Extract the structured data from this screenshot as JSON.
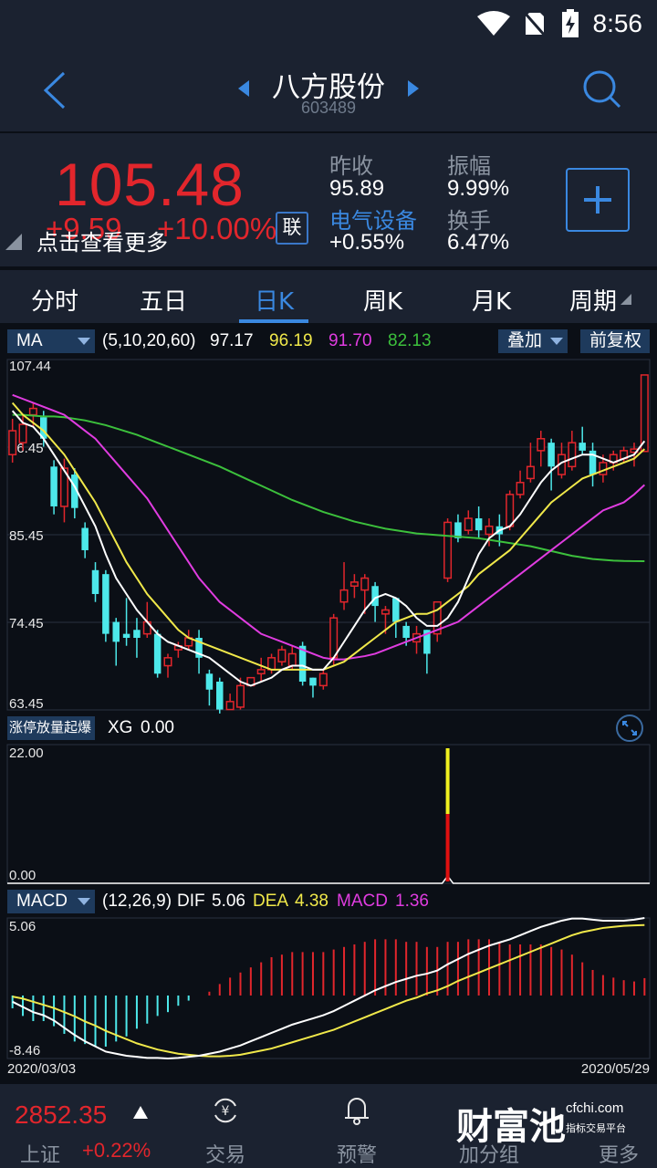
{
  "status": {
    "time": "8:56"
  },
  "header": {
    "stock_name": "八方股份",
    "stock_code": "603489"
  },
  "quote": {
    "price": "105.48",
    "change": "+9.59",
    "change_pct": "+10.00%",
    "hint": "点击查看更多",
    "lian_label": "联",
    "prev_close_label": "昨收",
    "prev_close": "95.89",
    "amplitude_label": "振幅",
    "amplitude": "9.99%",
    "sector": "电气设备",
    "sector_change": "+0.55%",
    "turnover_label": "换手",
    "turnover": "6.47%"
  },
  "tabs": [
    "分时",
    "五日",
    "日K",
    "周K",
    "月K",
    "周期"
  ],
  "active_tab": "日K",
  "ma_bar": {
    "selector": "MA",
    "params": "(5,10,20,60)",
    "v5": "97.17",
    "v10": "96.19",
    "v20": "91.70",
    "v60": "82.13",
    "overlay_btn": "叠加",
    "adjust_btn": "前复权",
    "colors": {
      "ma5": "#ffffff",
      "ma10": "#f0e84a",
      "ma20": "#e03ce0",
      "ma60": "#3cc03c"
    }
  },
  "xg_bar": {
    "selector": "涨停放量起爆",
    "label": "XG",
    "value": "0.00"
  },
  "macd_bar": {
    "selector": "MACD",
    "params": "(12,26,9)",
    "dif_label": "DIF",
    "dif": "5.06",
    "dea_label": "DEA",
    "dea": "4.38",
    "macd_label": "MACD",
    "macd": "1.36"
  },
  "chart_data": {
    "type": "candlestick",
    "price_axis": [
      "107.44",
      "96.45",
      "85.45",
      "74.45",
      "63.45"
    ],
    "price_range": [
      63.45,
      107.44
    ],
    "xg_axis": [
      "22.00",
      "0.00"
    ],
    "macd_axis": [
      "5.06",
      "-8.46"
    ],
    "date_start": "2020/03/03",
    "date_end": "2020/05/29",
    "candles": [
      {
        "o": 95.5,
        "c": 98.5,
        "h": 100.0,
        "l": 94.5
      },
      {
        "o": 97.0,
        "c": 99.3,
        "h": 100.5,
        "l": 96.0
      },
      {
        "o": 100.5,
        "c": 101.3,
        "h": 102.0,
        "l": 99.0
      },
      {
        "o": 100.2,
        "c": 97.5,
        "h": 101.0,
        "l": 96.5
      },
      {
        "o": 94.0,
        "c": 89.0,
        "h": 94.8,
        "l": 88.0
      },
      {
        "o": 89.0,
        "c": 93.8,
        "h": 95.0,
        "l": 87.0
      },
      {
        "o": 93.0,
        "c": 88.8,
        "h": 93.8,
        "l": 87.5
      },
      {
        "o": 86.3,
        "c": 83.5,
        "h": 87.0,
        "l": 82.5
      },
      {
        "o": 81.0,
        "c": 78.0,
        "h": 82.0,
        "l": 77.0
      },
      {
        "o": 80.5,
        "c": 73.0,
        "h": 81.0,
        "l": 72.0
      },
      {
        "o": 74.5,
        "c": 72.0,
        "h": 75.0,
        "l": 69.0
      },
      {
        "o": 73.0,
        "c": 72.5,
        "h": 77.5,
        "l": 71.5
      },
      {
        "o": 73.5,
        "c": 72.5,
        "h": 75.0,
        "l": 70.0
      },
      {
        "o": 73.0,
        "c": 74.5,
        "h": 77.0,
        "l": 72.5
      },
      {
        "o": 73.0,
        "c": 68.0,
        "h": 73.5,
        "l": 67.5
      },
      {
        "o": 69.0,
        "c": 70.0,
        "h": 70.5,
        "l": 67.5
      },
      {
        "o": 71.0,
        "c": 71.5,
        "h": 72.0,
        "l": 70.0
      },
      {
        "o": 71.5,
        "c": 72.5,
        "h": 73.5,
        "l": 71.0
      },
      {
        "o": 72.5,
        "c": 70.0,
        "h": 73.5,
        "l": 68.0
      },
      {
        "o": 68.0,
        "c": 66.0,
        "h": 68.5,
        "l": 64.0
      },
      {
        "o": 67.0,
        "c": 63.5,
        "h": 67.5,
        "l": 63.0
      },
      {
        "o": 63.5,
        "c": 64.5,
        "h": 65.5,
        "l": 63.5
      },
      {
        "o": 63.8,
        "c": 66.5,
        "h": 67.5,
        "l": 63.5
      },
      {
        "o": 66.5,
        "c": 67.5,
        "h": 67.5,
        "l": 66.5
      },
      {
        "o": 68.0,
        "c": 68.5,
        "h": 70.0,
        "l": 67.0
      },
      {
        "o": 68.5,
        "c": 70.0,
        "h": 70.5,
        "l": 68.0
      },
      {
        "o": 69.5,
        "c": 71.0,
        "h": 71.5,
        "l": 69.0
      },
      {
        "o": 69.0,
        "c": 70.5,
        "h": 71.5,
        "l": 68.5
      },
      {
        "o": 71.5,
        "c": 67.0,
        "h": 72.0,
        "l": 66.5
      },
      {
        "o": 67.5,
        "c": 66.5,
        "h": 67.5,
        "l": 65.0
      },
      {
        "o": 66.5,
        "c": 68.0,
        "h": 68.5,
        "l": 66.0
      },
      {
        "o": 70.0,
        "c": 75.0,
        "h": 75.5,
        "l": 69.0
      },
      {
        "o": 77.0,
        "c": 78.5,
        "h": 82.0,
        "l": 76.0
      },
      {
        "o": 79.0,
        "c": 79.5,
        "h": 80.5,
        "l": 77.5
      },
      {
        "o": 78.5,
        "c": 80.0,
        "h": 80.5,
        "l": 75.5
      },
      {
        "o": 79.0,
        "c": 76.5,
        "h": 79.5,
        "l": 74.5
      },
      {
        "o": 75.5,
        "c": 76.0,
        "h": 76.5,
        "l": 73.0
      },
      {
        "o": 77.5,
        "c": 74.5,
        "h": 77.5,
        "l": 72.5
      },
      {
        "o": 74.0,
        "c": 72.5,
        "h": 74.5,
        "l": 71.5
      },
      {
        "o": 72.0,
        "c": 73.0,
        "h": 74.0,
        "l": 70.5
      },
      {
        "o": 73.5,
        "c": 70.5,
        "h": 73.5,
        "l": 68.0
      },
      {
        "o": 73.0,
        "c": 77.0,
        "h": 77.0,
        "l": 72.0
      },
      {
        "o": 80.0,
        "c": 87.0,
        "h": 87.5,
        "l": 79.5
      },
      {
        "o": 87.0,
        "c": 85.0,
        "h": 88.0,
        "l": 84.5
      },
      {
        "o": 86.0,
        "c": 87.5,
        "h": 88.5,
        "l": 85.5
      },
      {
        "o": 87.5,
        "c": 86.0,
        "h": 89.0,
        "l": 85.0
      },
      {
        "o": 85.5,
        "c": 86.5,
        "h": 87.5,
        "l": 84.0
      },
      {
        "o": 86.5,
        "c": 85.5,
        "h": 88.0,
        "l": 84.0
      },
      {
        "o": 86.5,
        "c": 90.5,
        "h": 91.0,
        "l": 86.0
      },
      {
        "o": 90.5,
        "c": 92.0,
        "h": 93.5,
        "l": 90.0
      },
      {
        "o": 92.5,
        "c": 94.0,
        "h": 97.0,
        "l": 92.0
      },
      {
        "o": 96.0,
        "c": 97.5,
        "h": 98.5,
        "l": 94.0
      },
      {
        "o": 97.0,
        "c": 94.0,
        "h": 97.5,
        "l": 91.0
      },
      {
        "o": 93.0,
        "c": 95.5,
        "h": 97.0,
        "l": 92.5
      },
      {
        "o": 94.0,
        "c": 97.0,
        "h": 98.5,
        "l": 93.5
      },
      {
        "o": 97.0,
        "c": 96.0,
        "h": 99.0,
        "l": 95.5
      },
      {
        "o": 96.0,
        "c": 93.0,
        "h": 97.0,
        "l": 91.5
      },
      {
        "o": 93.0,
        "c": 94.5,
        "h": 95.5,
        "l": 92.0
      },
      {
        "o": 94.5,
        "c": 95.5,
        "h": 96.0,
        "l": 93.5
      },
      {
        "o": 95.0,
        "c": 96.0,
        "h": 96.5,
        "l": 94.5
      },
      {
        "o": 95.8,
        "c": 96.2,
        "h": 97.0,
        "l": 94.0
      },
      {
        "o": 95.9,
        "c": 105.5,
        "h": 105.5,
        "l": 95.9
      }
    ],
    "ma5": [
      101,
      99.5,
      99,
      97.5,
      95.5,
      93.5,
      91.5,
      89,
      86.5,
      83,
      80,
      78,
      76,
      74.5,
      73,
      72,
      71.5,
      71,
      70.5,
      70,
      69,
      68,
      67,
      66.5,
      67,
      67.5,
      68.5,
      69,
      69,
      68.5,
      68.5,
      70,
      72,
      74,
      76,
      77.5,
      78,
      77.5,
      76.5,
      75,
      74,
      74,
      75,
      77,
      80,
      83,
      85,
      86,
      86.5,
      88,
      90,
      92,
      93.5,
      94.5,
      95,
      95.5,
      95.5,
      95,
      94.5,
      95,
      95.5,
      97.2
    ],
    "ma10": [
      102,
      100.5,
      99.5,
      98.5,
      97,
      95.5,
      93.5,
      91.5,
      89.5,
      87,
      84.5,
      82,
      80,
      78,
      76.5,
      75,
      73.5,
      72.5,
      72,
      71.5,
      71,
      70.5,
      70,
      69.5,
      69,
      68.5,
      68.5,
      68.5,
      68.5,
      68.5,
      68.5,
      69,
      69.5,
      70.5,
      71.5,
      72.5,
      73.5,
      74.5,
      75,
      75.5,
      75.5,
      76,
      77,
      78,
      79,
      80.5,
      81.5,
      82.5,
      83.5,
      85,
      86.5,
      88,
      89.5,
      90.5,
      91.5,
      92.5,
      93,
      93.5,
      94,
      94.5,
      95,
      96.2
    ],
    "ma20": [
      103,
      102.5,
      102,
      101.5,
      101,
      100.5,
      99.5,
      98.5,
      97.5,
      96,
      94.5,
      93,
      91.5,
      90,
      88,
      86,
      84,
      82,
      80,
      78.5,
      77,
      76,
      75,
      74,
      73,
      72.5,
      72,
      71.5,
      71,
      70.5,
      70,
      69.8,
      69.8,
      70,
      70.2,
      70.5,
      71,
      71.5,
      72,
      72.5,
      73,
      73.5,
      74,
      74.5,
      75.5,
      76.5,
      77.5,
      78.5,
      79.5,
      80.5,
      81.5,
      82.5,
      83.5,
      84.5,
      85.5,
      86.5,
      87.5,
      88.5,
      89,
      89.5,
      90.5,
      91.7
    ],
    "ma60": [
      100.5,
      100.5,
      100.4,
      100.3,
      100.3,
      100.2,
      100,
      99.8,
      99.5,
      99.2,
      98.8,
      98.4,
      98,
      97.5,
      97,
      96.5,
      96,
      95.5,
      95,
      94.5,
      94,
      93.4,
      92.8,
      92.2,
      91.6,
      91,
      90.4,
      89.8,
      89.3,
      88.8,
      88.3,
      87.9,
      87.5,
      87.1,
      86.8,
      86.5,
      86.2,
      86,
      85.8,
      85.6,
      85.5,
      85.4,
      85.3,
      85.2,
      85.1,
      85,
      84.8,
      84.6,
      84.4,
      84.2,
      84,
      83.7,
      83.4,
      83.1,
      82.8,
      82.6,
      82.4,
      82.3,
      82.2,
      82.15,
      82.13,
      82.13
    ],
    "xg_signal_index": 42,
    "dif": [
      -3,
      -3.5,
      -4,
      -4.3,
      -4.8,
      -5.5,
      -6.2,
      -6.8,
      -7.3,
      -7.8,
      -8.0,
      -8.2,
      -8.3,
      -8.4,
      -8.4,
      -8.46,
      -8.4,
      -8.3,
      -8.2,
      -8.0,
      -7.8,
      -7.5,
      -7.2,
      -6.8,
      -6.4,
      -6.0,
      -5.6,
      -5.2,
      -4.9,
      -4.6,
      -4.3,
      -3.9,
      -3.4,
      -2.9,
      -2.4,
      -1.9,
      -1.5,
      -1.1,
      -0.8,
      -0.5,
      -0.3,
      0.0,
      0.6,
      1.1,
      1.6,
      2.0,
      2.4,
      2.7,
      3.0,
      3.4,
      3.8,
      4.2,
      4.5,
      4.8,
      5.0,
      5.0,
      4.9,
      4.8,
      4.8,
      4.8,
      4.9,
      5.06
    ],
    "dea": [
      -2.5,
      -2.7,
      -3.0,
      -3.3,
      -3.6,
      -4.0,
      -4.4,
      -4.9,
      -5.3,
      -5.8,
      -6.2,
      -6.6,
      -7.0,
      -7.3,
      -7.6,
      -7.8,
      -8.0,
      -8.1,
      -8.2,
      -8.25,
      -8.25,
      -8.2,
      -8.1,
      -7.9,
      -7.7,
      -7.5,
      -7.2,
      -6.9,
      -6.6,
      -6.3,
      -6.0,
      -5.7,
      -5.3,
      -4.9,
      -4.5,
      -4.1,
      -3.7,
      -3.3,
      -2.9,
      -2.6,
      -2.2,
      -1.9,
      -1.5,
      -1.0,
      -0.6,
      -0.2,
      0.2,
      0.6,
      1.0,
      1.4,
      1.8,
      2.2,
      2.6,
      3.0,
      3.4,
      3.7,
      3.9,
      4.1,
      4.2,
      4.3,
      4.35,
      4.38
    ],
    "macd_hist": [
      -1.0,
      -1.6,
      -2.0,
      -2.0,
      -2.4,
      -3.0,
      -3.6,
      -3.8,
      -4.0,
      -4.0,
      -3.6,
      -3.2,
      -2.6,
      -2.2,
      -1.6,
      -1.3,
      -0.8,
      -0.4,
      0.0,
      0.3,
      0.9,
      1.4,
      1.8,
      2.2,
      2.6,
      3.0,
      3.2,
      3.4,
      3.4,
      3.4,
      3.4,
      3.6,
      3.8,
      4.0,
      4.2,
      4.4,
      4.4,
      4.4,
      4.2,
      4.2,
      3.8,
      3.8,
      4.2,
      4.2,
      4.4,
      4.4,
      4.4,
      4.2,
      4.0,
      4.0,
      4.0,
      4.0,
      3.8,
      3.6,
      3.2,
      2.6,
      2.0,
      1.6,
      1.4,
      1.2,
      1.1,
      1.36
    ]
  },
  "bottom": {
    "index_value": "2852.35",
    "index_name": "上证",
    "index_pct": "+0.22%",
    "items": [
      "交易",
      "预警",
      "加分组",
      "更多"
    ],
    "watermark": "财富池",
    "watermark_site": "cfchi.com",
    "watermark_sub": "指标交易平台"
  }
}
